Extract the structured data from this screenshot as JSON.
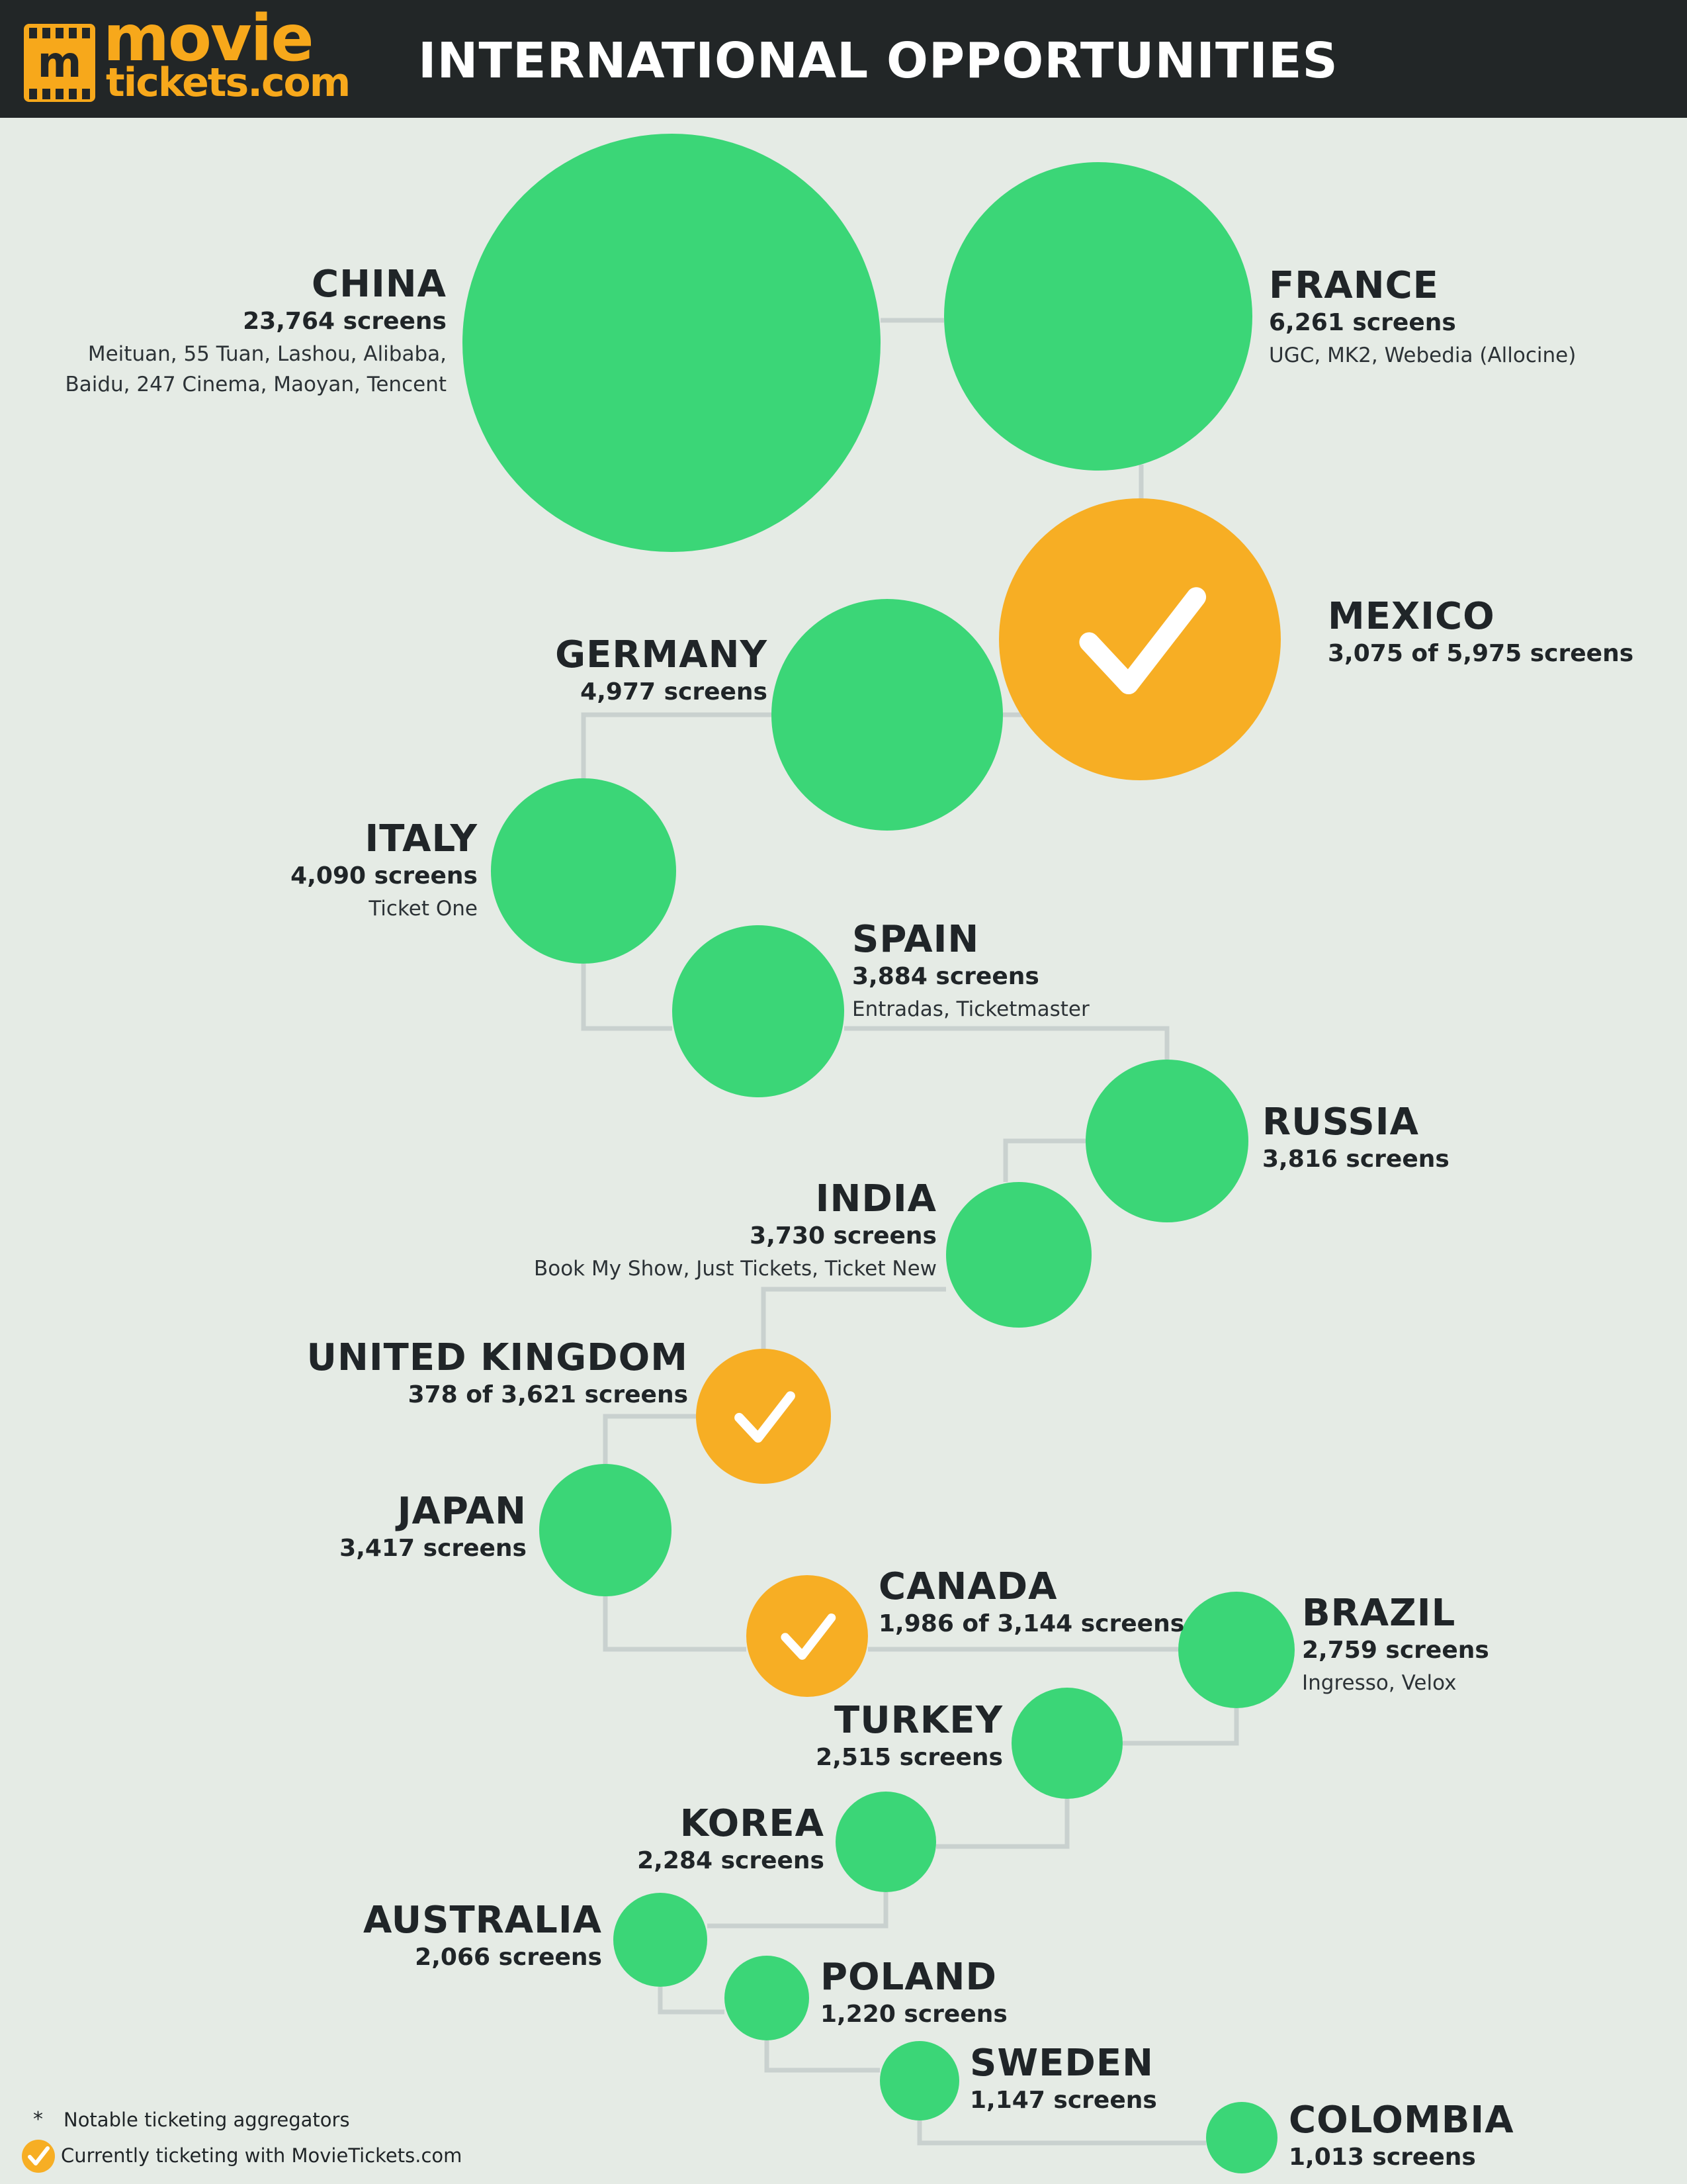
{
  "header": {
    "logo_top": "movie",
    "logo_bottom": "tickets.com",
    "logo_mark": "m",
    "title": "INTERNATIONAL OPPORTUNITIES"
  },
  "colors": {
    "background": "#e5ebe5",
    "header_bg": "#222627",
    "green": "#3bd677",
    "orange": "#f7ae24",
    "connector": "#c9d1cf",
    "brand": "#f7a81b"
  },
  "icons": [
    "checkmark-icon"
  ],
  "countries": [
    {
      "name": "CHINA",
      "screens": "23,764 screens",
      "aggregators": [
        "Meituan, 55 Tuan, Lashou, Alibaba,",
        "Baidu, 247 Cinema, Maoyan, Tencent"
      ],
      "total_screens": 23764,
      "ticketing": false
    },
    {
      "name": "FRANCE",
      "screens": "6,261 screens",
      "aggregators": [
        "UGC, MK2, Webedia (Allocine)"
      ],
      "total_screens": 6261,
      "ticketing": false
    },
    {
      "name": "MEXICO",
      "screens": "3,075 of 5,975 screens",
      "aggregators": [],
      "total_screens": 5975,
      "ticketing": true
    },
    {
      "name": "GERMANY",
      "screens": "4,977 screens",
      "aggregators": [],
      "total_screens": 4977,
      "ticketing": false
    },
    {
      "name": "ITALY",
      "screens": "4,090 screens",
      "aggregators": [
        "Ticket One"
      ],
      "total_screens": 4090,
      "ticketing": false
    },
    {
      "name": "SPAIN",
      "screens": "3,884 screens",
      "aggregators": [
        "Entradas, Ticketmaster"
      ],
      "total_screens": 3884,
      "ticketing": false
    },
    {
      "name": "RUSSIA",
      "screens": "3,816 screens",
      "aggregators": [],
      "total_screens": 3816,
      "ticketing": false
    },
    {
      "name": "INDIA",
      "screens": "3,730 screens",
      "aggregators": [
        "Book My Show, Just Tickets, Ticket New"
      ],
      "total_screens": 3730,
      "ticketing": false
    },
    {
      "name": "UNITED KINGDOM",
      "screens": "378 of 3,621 screens",
      "aggregators": [],
      "total_screens": 3621,
      "ticketing": true
    },
    {
      "name": "JAPAN",
      "screens": "3,417 screens",
      "aggregators": [],
      "total_screens": 3417,
      "ticketing": false
    },
    {
      "name": "CANADA",
      "screens": "1,986 of 3,144 screens",
      "aggregators": [],
      "total_screens": 3144,
      "ticketing": true
    },
    {
      "name": "BRAZIL",
      "screens": "2,759 screens",
      "aggregators": [
        "Ingresso, Velox"
      ],
      "total_screens": 2759,
      "ticketing": false
    },
    {
      "name": "TURKEY",
      "screens": "2,515 screens",
      "aggregators": [],
      "total_screens": 2515,
      "ticketing": false
    },
    {
      "name": "KOREA",
      "screens": "2,284 screens",
      "aggregators": [],
      "total_screens": 2284,
      "ticketing": false
    },
    {
      "name": "AUSTRALIA",
      "screens": "2,066 screens",
      "aggregators": [],
      "total_screens": 2066,
      "ticketing": false
    },
    {
      "name": "POLAND",
      "screens": "1,220 screens",
      "aggregators": [],
      "total_screens": 1220,
      "ticketing": false
    },
    {
      "name": "SWEDEN",
      "screens": "1,147 screens",
      "aggregators": [],
      "total_screens": 1147,
      "ticketing": false
    },
    {
      "name": "COLOMBIA",
      "screens": "1,013 screens",
      "aggregators": [],
      "total_screens": 1013,
      "ticketing": false
    }
  ],
  "legend": {
    "asterisk": "*",
    "aggregators_note": "Notable ticketing aggregators",
    "ticketing_note": "Currently ticketing with MovieTickets.com"
  }
}
